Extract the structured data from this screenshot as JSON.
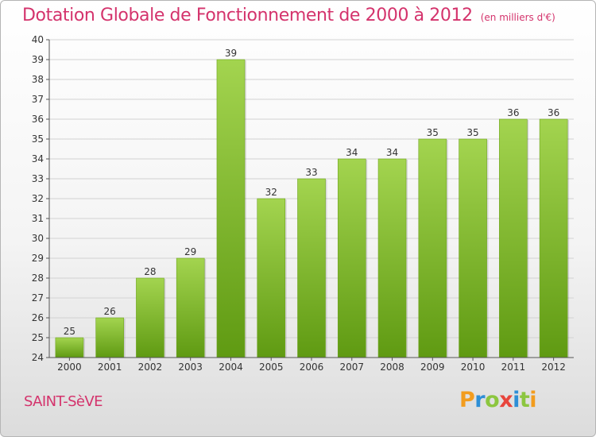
{
  "title": "Dotation Globale de Fonctionnement de 2000 à 2012",
  "unit_note": "(en milliers d'€)",
  "commune": "SAINT-SèVE",
  "logo_text": "Proxiti",
  "colors": {
    "title": "#d4336c",
    "bar_light": "#9fd24a",
    "bar_dark": "#5f9a12",
    "grid": "#d0d0d0"
  },
  "chart_data": {
    "type": "bar",
    "title": "Dotation Globale de Fonctionnement de 2000 à 2012",
    "xlabel": "",
    "ylabel": "",
    "categories": [
      "2000",
      "2001",
      "2002",
      "2003",
      "2004",
      "2005",
      "2006",
      "2007",
      "2008",
      "2009",
      "2010",
      "2011",
      "2012"
    ],
    "values": [
      25,
      26,
      28,
      29,
      39,
      32,
      33,
      34,
      34,
      35,
      35,
      36,
      36
    ],
    "ylim": [
      24,
      40
    ],
    "yticks": [
      24,
      25,
      26,
      27,
      28,
      29,
      30,
      31,
      32,
      33,
      34,
      35,
      36,
      37,
      38,
      39,
      40
    ],
    "grid": true,
    "data_labels": true
  }
}
